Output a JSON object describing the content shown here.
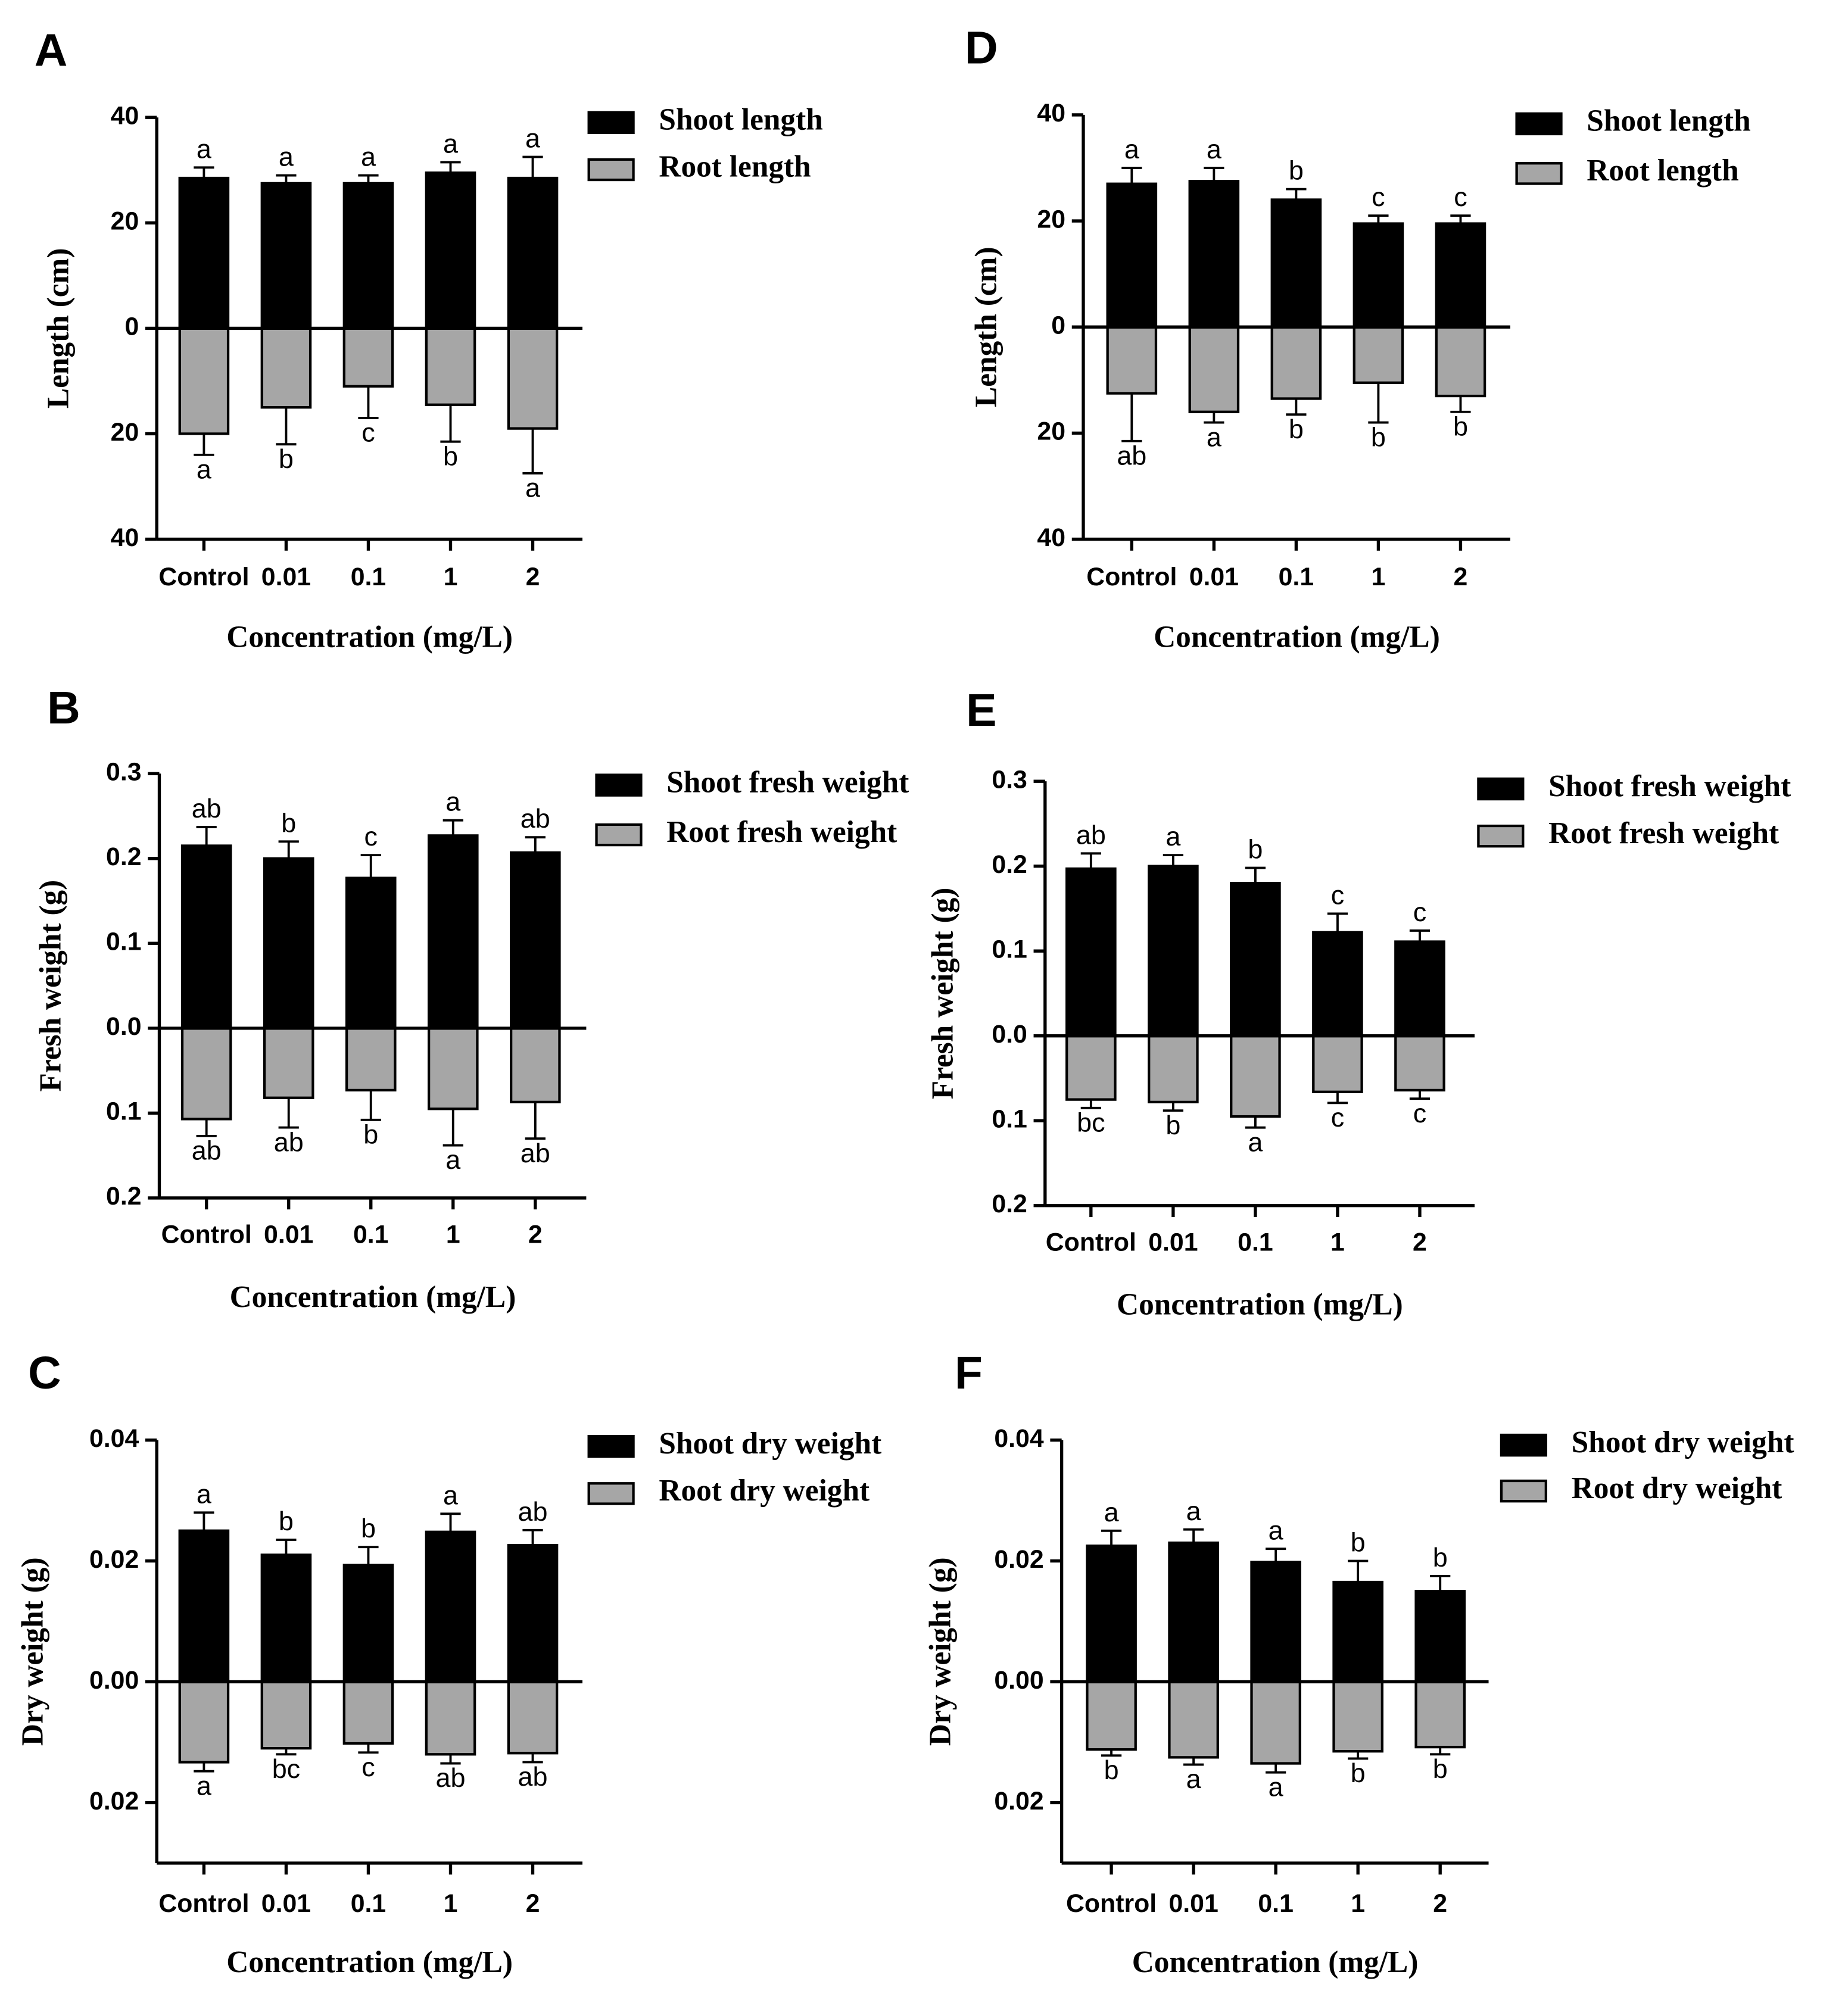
{
  "chart_data": [
    {
      "type": "bar",
      "panel": "A",
      "ylabel": "Length (cm)",
      "xlabel": "Concentration (mg/L)",
      "categories": [
        "Control",
        "0.01",
        "0.1",
        "1",
        "2"
      ],
      "ylim": [
        -40,
        40
      ],
      "yticks": [
        40,
        20,
        0,
        {
          "value": -20,
          "label": "20"
        },
        {
          "value": -40,
          "label": "40"
        }
      ],
      "series": [
        {
          "name": "Shoot length",
          "color": "#000000",
          "values": [
            28.5,
            27.5,
            27.5,
            29.5,
            28.5
          ],
          "errors": [
            2,
            1.5,
            1.5,
            2,
            4
          ],
          "letters": [
            "a",
            "a",
            "a",
            "a",
            "a"
          ]
        },
        {
          "name": "Root length",
          "color": "#a6a6a6",
          "values": [
            -20,
            -15,
            -11,
            -14.5,
            -19
          ],
          "errors": [
            4,
            7,
            6,
            7,
            8.5
          ],
          "letters": [
            "a",
            "b",
            "c",
            "b",
            "a"
          ]
        }
      ]
    },
    {
      "type": "bar",
      "panel": "D",
      "ylabel": "Length (cm)",
      "xlabel": "Concentration (mg/L)",
      "categories": [
        "Control",
        "0.01",
        "0.1",
        "1",
        "2"
      ],
      "ylim": [
        -40,
        40
      ],
      "yticks": [
        40,
        20,
        0,
        {
          "value": -20,
          "label": "20"
        },
        {
          "value": -40,
          "label": "40"
        }
      ],
      "series": [
        {
          "name": "Shoot length",
          "color": "#000000",
          "values": [
            27,
            27.5,
            24,
            19.5,
            19.5
          ],
          "errors": [
            3,
            2.5,
            2,
            1.5,
            1.5
          ],
          "letters": [
            "a",
            "a",
            "b",
            "c",
            "c"
          ]
        },
        {
          "name": "Root length",
          "color": "#a6a6a6",
          "values": [
            -12.5,
            -16,
            -13.5,
            -10.5,
            -13
          ],
          "errors": [
            9,
            2,
            3,
            7.5,
            3
          ],
          "letters": [
            "ab",
            "a",
            "b",
            "b",
            "b"
          ]
        }
      ]
    },
    {
      "type": "bar",
      "panel": "B",
      "ylabel": "Fresh weight (g)",
      "xlabel": "Concentration (mg/L)",
      "categories": [
        "Control",
        "0.01",
        "0.1",
        "1",
        "2"
      ],
      "ylim": [
        -0.2,
        0.3
      ],
      "yticks": [
        0.3,
        0.2,
        0.1,
        {
          "value": 0,
          "label": "0.0"
        },
        {
          "value": -0.1,
          "label": "0.1"
        },
        {
          "value": -0.2,
          "label": "0.2"
        }
      ],
      "series": [
        {
          "name": "Shoot fresh weight",
          "color": "#000000",
          "values": [
            0.215,
            0.2,
            0.177,
            0.227,
            0.207
          ],
          "errors": [
            0.022,
            0.02,
            0.027,
            0.018,
            0.018
          ],
          "letters": [
            "ab",
            "b",
            "c",
            "a",
            "ab"
          ]
        },
        {
          "name": "Root fresh weight",
          "color": "#a6a6a6",
          "values": [
            -0.107,
            -0.082,
            -0.073,
            -0.095,
            -0.087
          ],
          "errors": [
            0.02,
            0.035,
            0.035,
            0.043,
            0.043
          ],
          "letters": [
            "ab",
            "ab",
            "b",
            "a",
            "ab"
          ]
        }
      ]
    },
    {
      "type": "bar",
      "panel": "E",
      "ylabel": "Fresh weight (g)",
      "xlabel": "Concentration (mg/L)",
      "categories": [
        "Control",
        "0.01",
        "0.1",
        "1",
        "2"
      ],
      "ylim": [
        -0.2,
        0.3
      ],
      "yticks": [
        0.3,
        0.2,
        0.1,
        {
          "value": 0,
          "label": "0.0"
        },
        {
          "value": -0.1,
          "label": "0.1"
        },
        {
          "value": -0.2,
          "label": "0.2"
        }
      ],
      "series": [
        {
          "name": "Shoot fresh weight",
          "color": "#000000",
          "values": [
            0.197,
            0.2,
            0.18,
            0.122,
            0.111
          ],
          "errors": [
            0.018,
            0.013,
            0.018,
            0.022,
            0.013
          ],
          "letters": [
            "ab",
            "a",
            "b",
            "c",
            "c"
          ]
        },
        {
          "name": "Root fresh weight",
          "color": "#a6a6a6",
          "values": [
            -0.075,
            -0.078,
            -0.095,
            -0.066,
            -0.064
          ],
          "errors": [
            0.01,
            0.01,
            0.013,
            0.013,
            0.01
          ],
          "letters": [
            "bc",
            "b",
            "a",
            "c",
            "c"
          ]
        }
      ]
    },
    {
      "type": "bar",
      "panel": "C",
      "ylabel": "Dry weight (g)",
      "xlabel": "Concentration (mg/L)",
      "categories": [
        "Control",
        "0.01",
        "0.1",
        "1",
        "2"
      ],
      "ylim": [
        -0.03,
        0.04
      ],
      "yticks": [
        0.04,
        0.02,
        {
          "value": 0,
          "label": "0.00"
        },
        {
          "value": -0.02,
          "label": "0.02"
        }
      ],
      "series": [
        {
          "name": "Shoot dry weight",
          "color": "#000000",
          "values": [
            0.025,
            0.021,
            0.0193,
            0.0248,
            0.0226
          ],
          "errors": [
            0.003,
            0.0025,
            0.003,
            0.003,
            0.0025
          ],
          "letters": [
            "a",
            "b",
            "b",
            "a",
            "ab"
          ]
        },
        {
          "name": "Root dry weight",
          "color": "#a6a6a6",
          "values": [
            -0.0133,
            -0.011,
            -0.0102,
            -0.012,
            -0.0118
          ],
          "errors": [
            0.0015,
            0.001,
            0.0015,
            0.0015,
            0.0015
          ],
          "letters": [
            "a",
            "bc",
            "c",
            "ab",
            "ab"
          ]
        }
      ]
    },
    {
      "type": "bar",
      "panel": "F",
      "ylabel": "Dry weight (g)",
      "xlabel": "Concentration (mg/L)",
      "categories": [
        "Control",
        "0.01",
        "0.1",
        "1",
        "2"
      ],
      "ylim": [
        -0.03,
        0.04
      ],
      "yticks": [
        0.04,
        0.02,
        {
          "value": 0,
          "label": "0.00"
        },
        {
          "value": -0.02,
          "label": "0.02"
        }
      ],
      "series": [
        {
          "name": "Shoot dry weight",
          "color": "#000000",
          "values": [
            0.0225,
            0.023,
            0.0198,
            0.0165,
            0.015
          ],
          "errors": [
            0.0025,
            0.0022,
            0.0022,
            0.0035,
            0.0025
          ],
          "letters": [
            "a",
            "a",
            "a",
            "b",
            "b"
          ]
        },
        {
          "name": "Root dry weight",
          "color": "#a6a6a6",
          "values": [
            -0.0112,
            -0.0125,
            -0.0135,
            -0.0115,
            -0.0108
          ],
          "errors": [
            0.001,
            0.0012,
            0.0015,
            0.0012,
            0.0012
          ],
          "letters": [
            "b",
            "a",
            "a",
            "b",
            "b"
          ]
        }
      ]
    }
  ]
}
